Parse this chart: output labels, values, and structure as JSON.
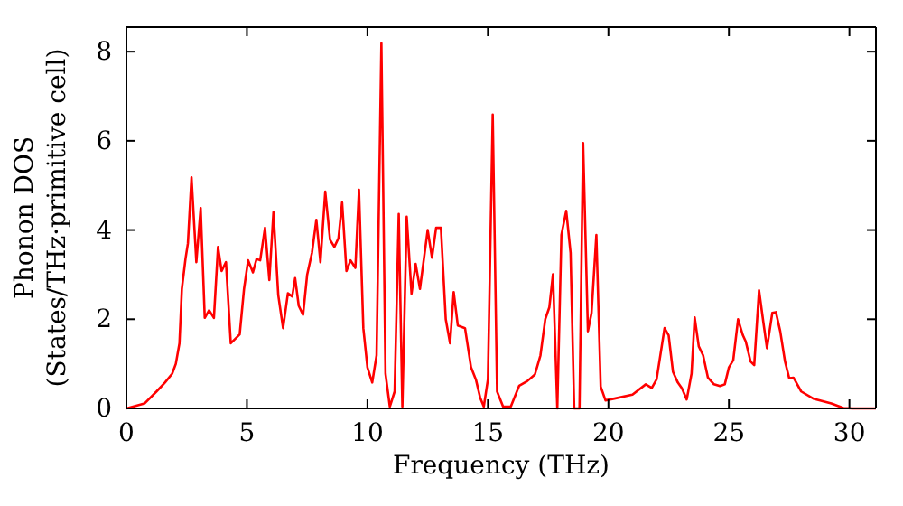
{
  "chart_data": {
    "type": "line",
    "xlabel": "Frequency (THz)",
    "ylabel": "Phonon DOS\n(States/THz·primitive cell)",
    "xlim": [
      0,
      31.1
    ],
    "ylim": [
      0,
      8.55
    ],
    "xticks": [
      0,
      5,
      10,
      15,
      20,
      25,
      30
    ],
    "yticks": [
      0,
      2,
      4,
      6,
      8
    ],
    "grid": false,
    "marker": "none",
    "line_style": "solid",
    "series": [
      {
        "color": "#ff0000",
        "x": [
          0,
          0.75,
          1.25,
          1.6,
          1.9,
          2.05,
          2.2,
          2.3,
          2.45,
          2.55,
          2.7,
          2.9,
          3.08,
          3.25,
          3.43,
          3.63,
          3.8,
          3.95,
          4.13,
          4.33,
          4.7,
          4.88,
          5.05,
          5.25,
          5.4,
          5.55,
          5.75,
          5.93,
          6.1,
          6.3,
          6.5,
          6.7,
          6.88,
          7.0,
          7.15,
          7.33,
          7.5,
          7.7,
          7.88,
          8.05,
          8.25,
          8.45,
          8.63,
          8.8,
          8.95,
          9.13,
          9.3,
          9.5,
          9.65,
          9.83,
          10.0,
          10.2,
          10.38,
          10.58,
          10.75,
          10.93,
          11.13,
          11.3,
          11.45,
          11.63,
          11.83,
          12.0,
          12.18,
          12.5,
          12.68,
          12.85,
          13.05,
          13.25,
          13.43,
          13.58,
          13.75,
          14.05,
          14.3,
          14.5,
          14.68,
          14.83,
          15.0,
          15.2,
          15.38,
          15.63,
          15.95,
          16.3,
          16.63,
          16.95,
          17.18,
          17.38,
          17.55,
          17.7,
          17.88,
          18.05,
          18.25,
          18.43,
          18.58,
          18.8,
          18.95,
          19.15,
          19.3,
          19.5,
          19.68,
          19.88,
          20.25,
          21.0,
          21.55,
          21.8,
          22.0,
          22.33,
          22.5,
          22.68,
          22.88,
          23.05,
          23.25,
          23.45,
          23.58,
          23.75,
          23.93,
          24.13,
          24.38,
          24.63,
          24.83,
          25.0,
          25.18,
          25.38,
          25.58,
          25.7,
          25.9,
          26.05,
          26.25,
          26.43,
          26.58,
          26.8,
          26.95,
          27.13,
          27.33,
          27.5,
          27.68,
          28.0,
          28.5,
          29.25,
          29.75,
          30.13,
          31.1
        ],
        "values": [
          0,
          0.11,
          0.38,
          0.58,
          0.78,
          1.0,
          1.46,
          2.68,
          3.35,
          3.7,
          5.18,
          3.28,
          4.49,
          2.03,
          2.2,
          2.03,
          3.62,
          3.08,
          3.28,
          1.46,
          1.66,
          2.68,
          3.32,
          3.05,
          3.35,
          3.32,
          4.05,
          2.88,
          4.4,
          2.54,
          1.8,
          2.58,
          2.51,
          2.92,
          2.3,
          2.1,
          3.0,
          3.49,
          4.23,
          3.28,
          4.86,
          3.78,
          3.62,
          3.82,
          4.62,
          3.08,
          3.32,
          3.15,
          4.9,
          1.8,
          0.92,
          0.58,
          1.19,
          8.19,
          0.78,
          0.04,
          0.38,
          4.36,
          0.04,
          4.3,
          2.57,
          3.24,
          2.68,
          4.0,
          3.38,
          4.05,
          4.05,
          2.0,
          1.46,
          2.61,
          1.86,
          1.8,
          0.92,
          0.65,
          0.24,
          0.04,
          0.65,
          6.59,
          0.38,
          0.04,
          0.04,
          0.51,
          0.61,
          0.76,
          1.19,
          2.0,
          2.27,
          3.01,
          0,
          3.89,
          4.43,
          3.49,
          0,
          0,
          5.95,
          1.73,
          2.14,
          3.89,
          0.49,
          0.18,
          0.22,
          0.31,
          0.54,
          0.46,
          0.65,
          1.8,
          1.64,
          0.82,
          0.58,
          0.45,
          0.2,
          0.78,
          2.04,
          1.39,
          1.19,
          0.69,
          0.54,
          0.5,
          0.54,
          0.92,
          1.08,
          2.0,
          1.64,
          1.5,
          1.05,
          0.97,
          2.65,
          1.93,
          1.35,
          2.14,
          2.16,
          1.73,
          1.05,
          0.68,
          0.69,
          0.38,
          0.22,
          0.11,
          0.01,
          0,
          0
        ]
      }
    ]
  }
}
